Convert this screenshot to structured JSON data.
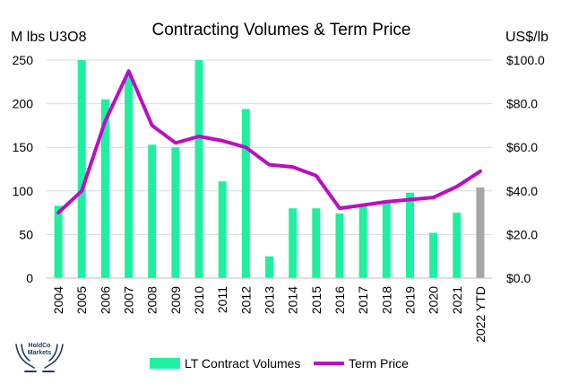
{
  "chart_data": {
    "type": "bar+line",
    "title": "Contracting Volumes & Term Price",
    "ylabel_left": "M lbs U3O8",
    "ylabel_right": "US$/lb",
    "categories": [
      "2004",
      "2005",
      "2006",
      "2007",
      "2008",
      "2009",
      "2010",
      "2011",
      "2012",
      "2013",
      "2014",
      "2015",
      "2016",
      "2017",
      "2018",
      "2019",
      "2020",
      "2021",
      "2022 YTD"
    ],
    "left_axis": {
      "min": 0,
      "max": 250,
      "ticks": [
        "0",
        "50",
        "100",
        "150",
        "200",
        "250"
      ]
    },
    "right_axis": {
      "min": 0,
      "max": 100,
      "ticks": [
        "$0.0",
        "$20.0",
        "$40.0",
        "$60.0",
        "$80.0",
        "$100.0"
      ]
    },
    "gridlines": true,
    "legend_position": "bottom",
    "series": [
      {
        "name": "LT Contract Volumes",
        "type": "bar",
        "axis": "left",
        "color": "#1ef0a0",
        "highlight_color": "#a6a6a6",
        "highlight_categories": [
          "2022 YTD"
        ],
        "values": [
          83,
          250,
          205,
          232,
          153,
          150,
          250,
          111,
          194,
          25,
          80,
          80,
          74,
          82,
          88,
          98,
          52,
          75,
          104
        ]
      },
      {
        "name": "Term Price",
        "type": "line",
        "axis": "right",
        "color": "#bb0ec4",
        "values": [
          30,
          40,
          72,
          95,
          70,
          62,
          65,
          63,
          60,
          52,
          51,
          47,
          32,
          33.5,
          35,
          36,
          37,
          42,
          49
        ]
      }
    ]
  },
  "logo": {
    "line1": "HoldCo",
    "line2": "Markets"
  }
}
